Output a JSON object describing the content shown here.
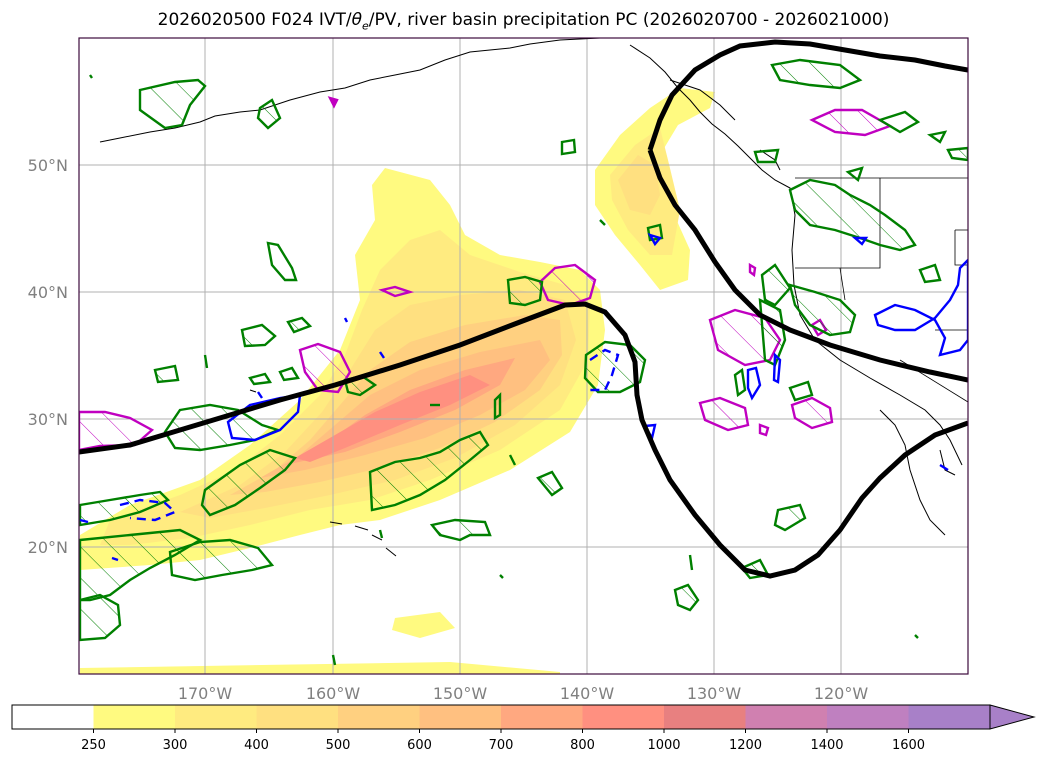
{
  "title": {
    "init": "2026020500 F024 IVT/",
    "theta": "θ",
    "theta_sub": "e",
    "rest": "/PV, river basin precipitation PC (2026020700 - 2026021000)"
  },
  "map": {
    "lat_labels": [
      "50°N",
      "40°N",
      "30°N",
      "20°N"
    ],
    "lon_labels": [
      "170°W",
      "160°W",
      "150°W",
      "140°W",
      "130°W",
      "120°W"
    ],
    "lat_values": [
      50,
      40,
      30,
      20
    ],
    "lon_values": [
      -170,
      -160,
      -150,
      -140,
      -130,
      -120
    ],
    "lon_range": [
      -180,
      -111
    ],
    "lat_range": [
      10,
      60
    ],
    "colors": {
      "pv_contour": "#000000",
      "green_contour": "#008000",
      "blue_contour": "#0000ff",
      "magenta_contour": "#c000c0",
      "coastline": "#000000",
      "gridline": "#b0b0b0"
    }
  },
  "colorbar": {
    "levels": [
      "250",
      "300",
      "400",
      "500",
      "600",
      "700",
      "800",
      "1000",
      "1200",
      "1400",
      "1600"
    ],
    "colors": [
      "#ffffff",
      "#fffa80",
      "#ffeb80",
      "#ffe080",
      "#ffd080",
      "#ffc080",
      "#ffa880",
      "#ff9080",
      "#e88080",
      "#d080b0",
      "#bf80c0",
      "#a880c8"
    ],
    "extend": "max"
  }
}
